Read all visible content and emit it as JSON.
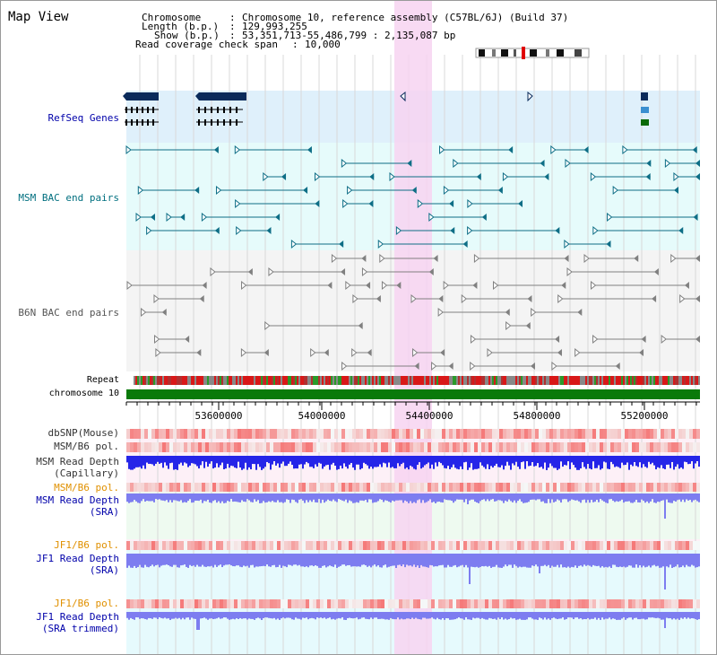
{
  "title": "Map View",
  "header": {
    "chromosome_key": "Chromosome",
    "chromosome_val": "Chromosome 10, reference assembly (C57BL/6J) (Build 37)",
    "length_key": "Length (b.p.)",
    "length_val": "129,993,255",
    "show_key": "Show (b.p.)",
    "show_val": "53,351,713-55,486,799 : 2,135,087 bp",
    "coverage_key": "Read coverage check span",
    "coverage_val": "10,000"
  },
  "tracks": {
    "refseq": "RefSeq Genes",
    "msm_bac": "MSM BAC end pairs",
    "b6n_bac": "B6N BAC end pairs",
    "repeat": "Repeat",
    "chromosome": "chromosome 10",
    "dbsnp": "dbSNP(Mouse)",
    "msm_b6_pol_1": "MSM/B6 pol.",
    "msm_depth_cap_1": "MSM Read Depth",
    "msm_depth_cap_2": "(Capillary)",
    "msm_b6_pol_2": "MSM/B6 pol.",
    "msm_depth_sra_1": "MSM Read Depth",
    "msm_depth_sra_2": "(SRA)",
    "jf1_b6_pol_1": "JF1/B6 pol.",
    "jf1_depth_sra_1": "JF1 Read Depth",
    "jf1_depth_sra_2": "(SRA)",
    "jf1_b6_pol_2": "JF1/B6 pol.",
    "jf1_depth_trim_1": "JF1 Read Depth",
    "jf1_depth_trim_2": "(SRA trimmed)"
  },
  "axis": {
    "ticks": [
      "53600000",
      "54000000",
      "54400000",
      "54800000",
      "55200000"
    ]
  },
  "colors": {
    "refseq_bg": "#dff0fb",
    "msm_bg": "#e6fbfb",
    "b6n_bg": "#f4f4f4",
    "highlight": "#f7d3f1",
    "gene": "#0a2a5a",
    "msm_bac": "#0e6e86",
    "b6n_bac": "#808080",
    "chrom_bar": "#0a7a0a",
    "label_blue": "#0000aa",
    "label_orange": "#e09000",
    "label_teal": "#006f7f",
    "depth_blue": "#2525e8",
    "depth_light": "#7d7df0"
  }
}
